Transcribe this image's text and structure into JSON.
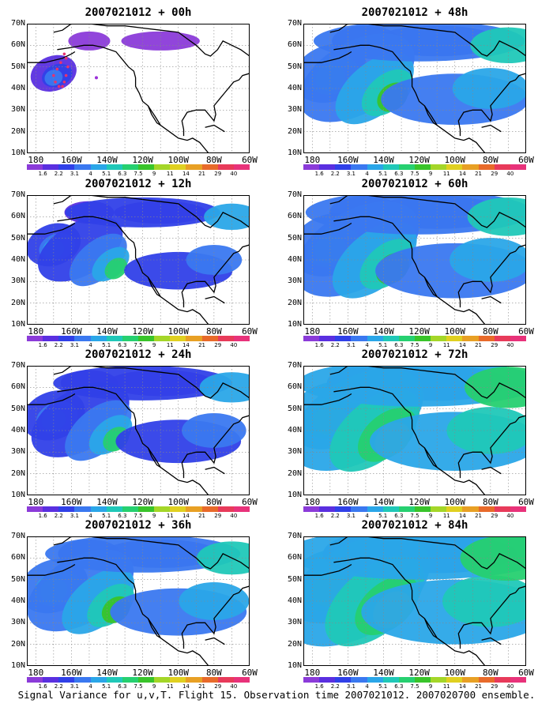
{
  "figure": {
    "caption": "Signal Variance for u,v,T. Flight 15. Observation time 2007021012. 2007020700 ensemble."
  },
  "axes": {
    "lat_labels": [
      "70N",
      "60N",
      "50N",
      "40N",
      "30N",
      "20N",
      "10N"
    ],
    "lon_labels": [
      "180",
      "160W",
      "140W",
      "120W",
      "100W",
      "80W",
      "60W"
    ]
  },
  "colorbar": {
    "labels": [
      "1.6",
      "2.2",
      "3.1",
      "4",
      "5.1",
      "6.3",
      "7.5",
      "9",
      "11",
      "14",
      "21",
      "29",
      "40"
    ],
    "colors": [
      "#8b3bd9",
      "#5a2fe0",
      "#3040e8",
      "#3a78f0",
      "#2aa6e8",
      "#20c8b8",
      "#26d070",
      "#39c42a",
      "#a4d628",
      "#e0d020",
      "#e8a024",
      "#e86a2a",
      "#e83a5a",
      "#e8327a"
    ]
  },
  "panels": [
    {
      "title": "2007021012 + 00h",
      "level": 0.15,
      "observation_track": true
    },
    {
      "title": "2007021012 + 12h",
      "level": 0.3,
      "observation_track": false
    },
    {
      "title": "2007021012 + 24h",
      "level": 0.45,
      "observation_track": false
    },
    {
      "title": "2007021012 + 36h",
      "level": 0.55,
      "observation_track": false
    },
    {
      "title": "2007021012 + 48h",
      "level": 0.65,
      "observation_track": false
    },
    {
      "title": "2007021012 + 60h",
      "level": 0.75,
      "observation_track": false
    },
    {
      "title": "2007021012 + 72h",
      "level": 0.85,
      "observation_track": false
    },
    {
      "title": "2007021012 + 84h",
      "level": 1.0,
      "observation_track": false
    }
  ]
}
